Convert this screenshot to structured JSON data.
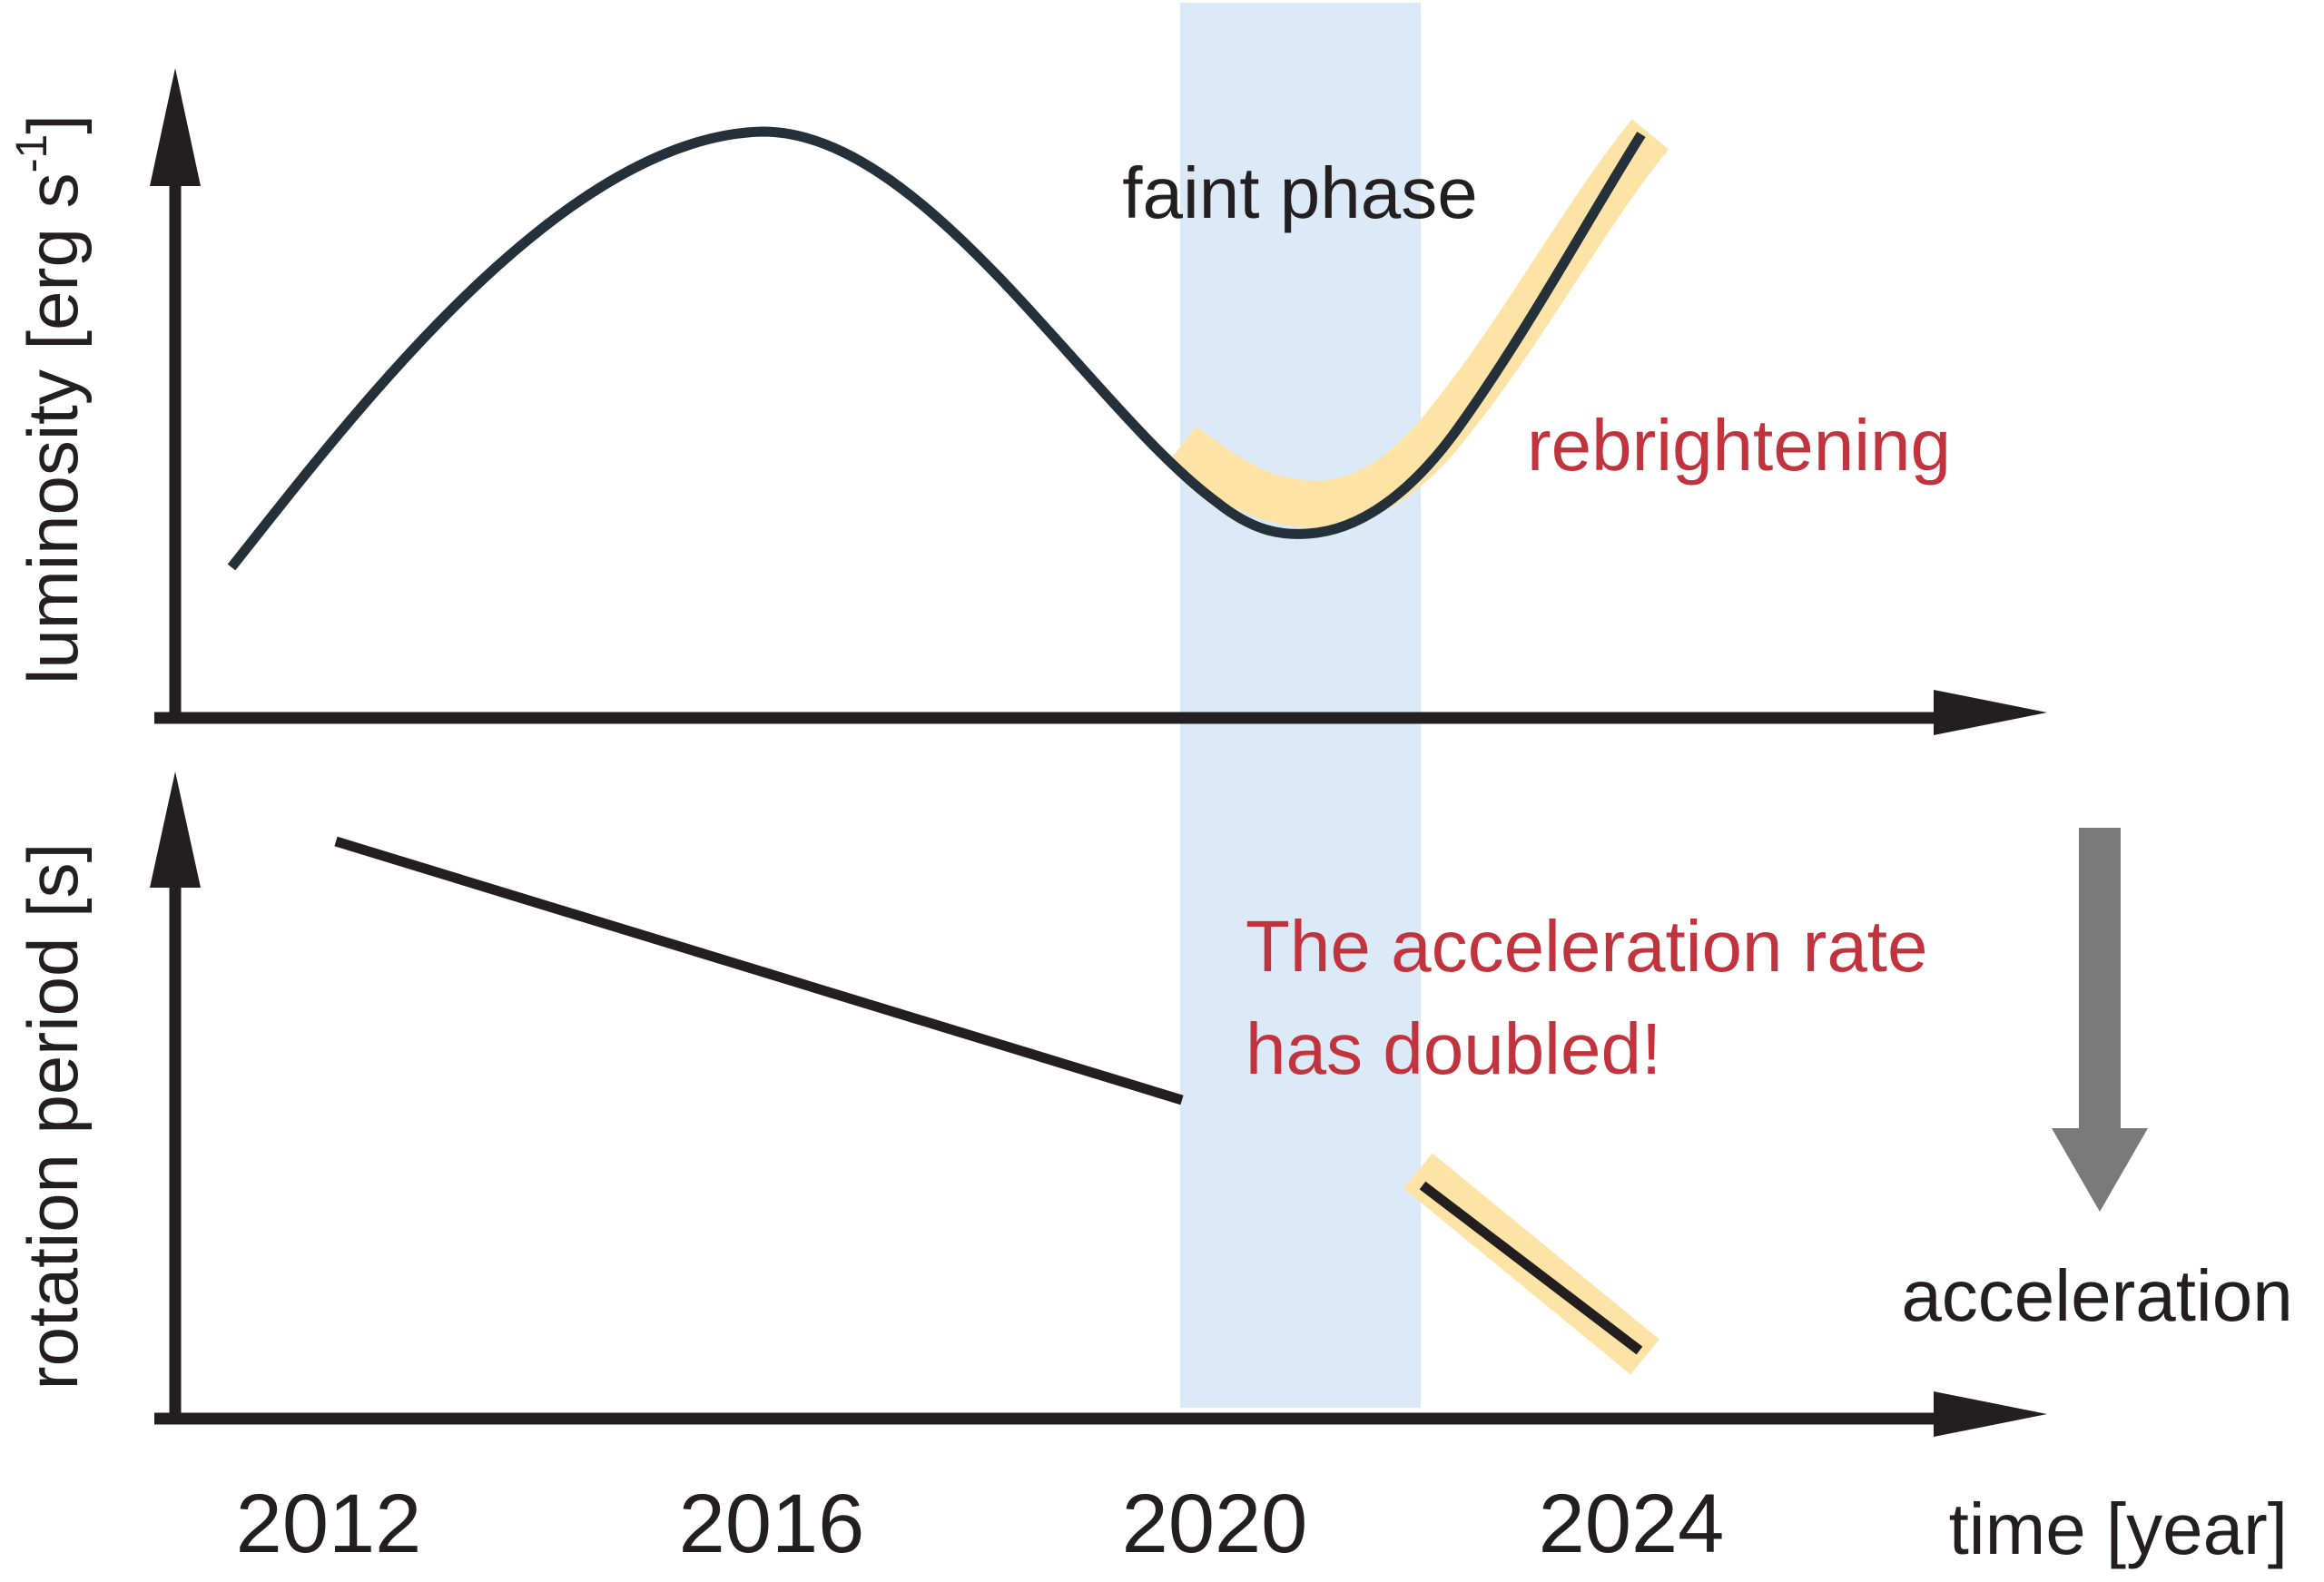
{
  "top_panel": {
    "y_label": "luminosity [erg s",
    "y_label_superscript": "-1",
    "y_label_close": "]",
    "annotation_faint": "faint phase",
    "annotation_rebrightening": "rebrightening"
  },
  "bottom_panel": {
    "y_label": "rotation period [s]",
    "annotation_line1": "The acceleration rate",
    "annotation_line2": "has doubled!",
    "arrow_label": "acceleration"
  },
  "x_axis": {
    "label": "time [year]",
    "ticks": [
      "2012",
      "2016",
      "2020",
      "2024"
    ]
  },
  "colors": {
    "axis": "#231f20",
    "curve": "#24303a",
    "highlight": "#fde3a6",
    "faint_band": "#dce9f6",
    "red_text": "#c1343e",
    "grey_arrow": "#7a7a7a"
  }
}
